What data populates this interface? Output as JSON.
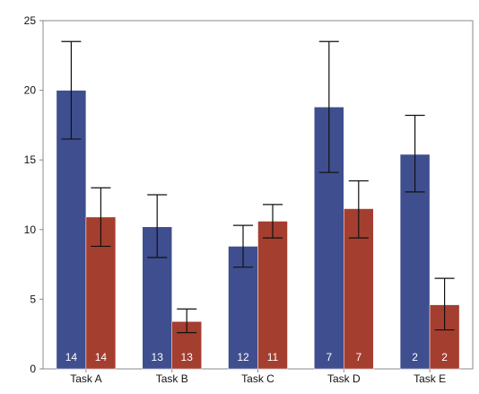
{
  "chart_data": {
    "type": "bar",
    "categories": [
      "Task A",
      "Task B",
      "Task C",
      "Task D",
      "Task E"
    ],
    "series": [
      {
        "values": [
          20.0,
          10.2,
          8.8,
          18.8,
          15.4
        ],
        "error": [
          [
            16.5,
            23.5
          ],
          [
            8.0,
            12.5
          ],
          [
            7.3,
            10.3
          ],
          [
            14.1,
            23.5
          ],
          [
            12.7,
            18.2
          ]
        ],
        "labels": [
          "14",
          "13",
          "12",
          "7",
          "2"
        ],
        "color": "#3f4e8f"
      },
      {
        "values": [
          10.9,
          3.4,
          10.6,
          11.5,
          4.6
        ],
        "error": [
          [
            8.8,
            13.0
          ],
          [
            2.6,
            4.3
          ],
          [
            9.4,
            11.8
          ],
          [
            9.4,
            13.5
          ],
          [
            2.8,
            6.5
          ]
        ],
        "labels": [
          "14",
          "13",
          "11",
          "7",
          "2"
        ],
        "color": "#a43e2f"
      }
    ],
    "ylim": [
      0,
      25
    ],
    "yticks": [
      "0",
      "5",
      "10",
      "15",
      "20",
      "25"
    ],
    "grid": false,
    "error_bar_color": "#111111"
  }
}
